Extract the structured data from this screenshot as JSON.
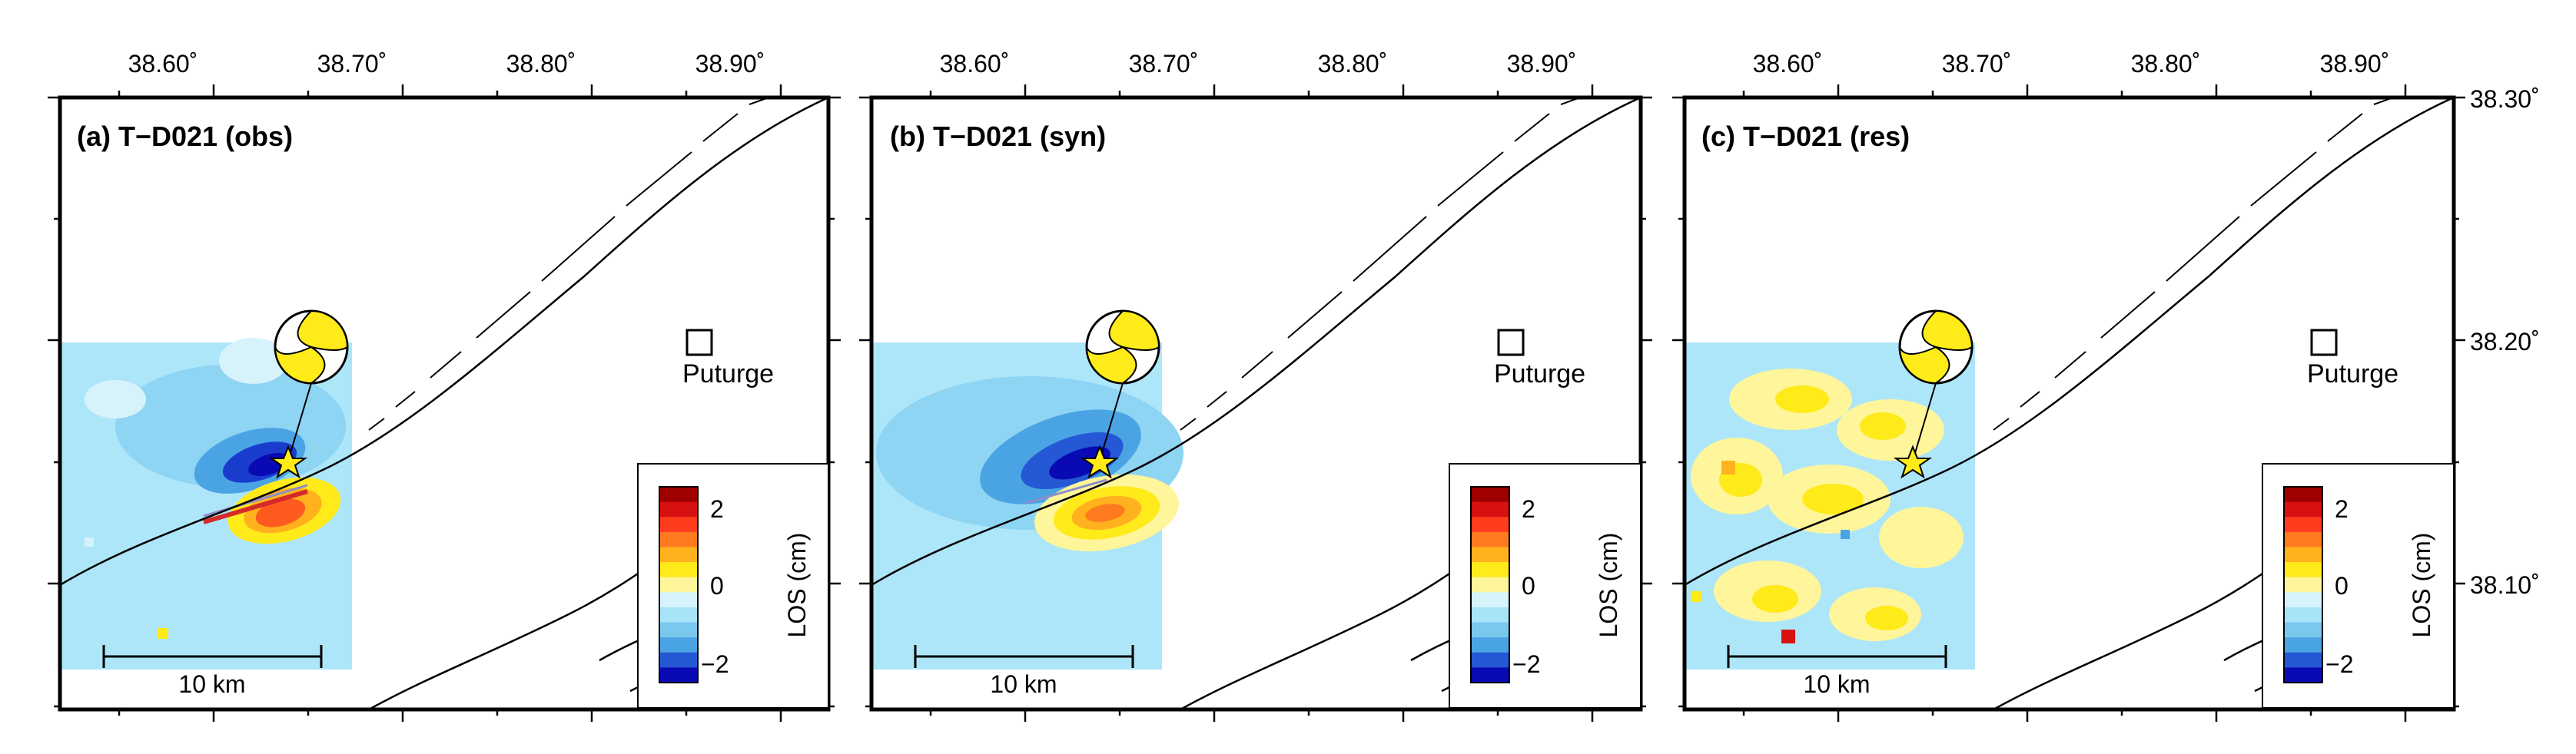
{
  "figure": {
    "longitude_ticks": [
      "38.60˚",
      "38.70˚",
      "38.80˚",
      "38.90˚"
    ],
    "latitude_ticks": [
      "38.30˚",
      "38.20˚",
      "38.10˚"
    ],
    "panels": [
      {
        "title": "(a) T−D021 (obs)",
        "type": "obs"
      },
      {
        "title": "(b) T−D021 (syn)",
        "type": "syn"
      },
      {
        "title": "(c) T−D021 (res)",
        "type": "res"
      }
    ],
    "town_label": "Puturge",
    "scale_bar_label": "10 km",
    "colorbar": {
      "label": "LOS (cm)",
      "ticks": [
        "2",
        "0",
        "−2"
      ],
      "colors": [
        "#9e0000",
        "#d71010",
        "#ff3c1e",
        "#ff7a1e",
        "#ffb21e",
        "#ffea1a",
        "#fff59a",
        "#d6f3fc",
        "#a8e4f8",
        "#7ac8ee",
        "#4aa4e4",
        "#2458d4",
        "#0a0ab4"
      ]
    }
  }
}
